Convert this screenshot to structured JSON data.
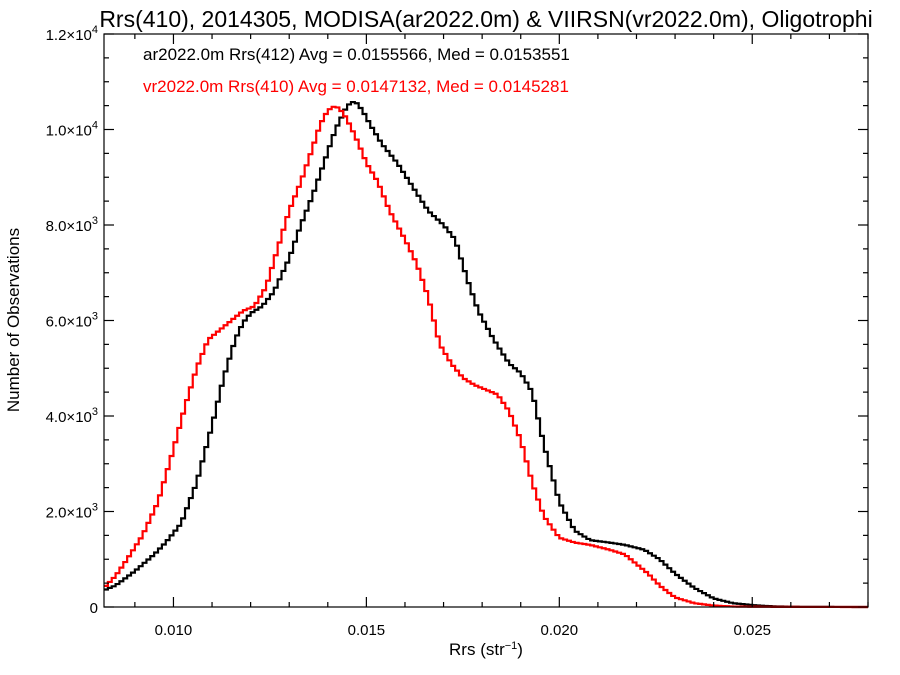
{
  "chart_data": {
    "type": "line",
    "title": "Rrs(410), 2014305, MODISA(ar2022.0m) & VIIRSN(vr2022.0m), Oligotrophi",
    "xlabel_main": "Rrs (str",
    "xlabel_sup": "−1",
    "xlabel_close": ")",
    "ylabel": "Number of Observations",
    "xlim": [
      0.0082,
      0.028
    ],
    "ylim": [
      0,
      12000
    ],
    "xticks": [
      {
        "value": 0.01,
        "label": "0.010"
      },
      {
        "value": 0.015,
        "label": "0.015"
      },
      {
        "value": 0.02,
        "label": "0.020"
      },
      {
        "value": 0.025,
        "label": "0.025"
      }
    ],
    "yticks": [
      {
        "value": 0,
        "mant": "0",
        "exp": ""
      },
      {
        "value": 2000,
        "mant": "2.0×10",
        "exp": "3"
      },
      {
        "value": 4000,
        "mant": "4.0×10",
        "exp": "3"
      },
      {
        "value": 6000,
        "mant": "6.0×10",
        "exp": "3"
      },
      {
        "value": 8000,
        "mant": "8.0×10",
        "exp": "3"
      },
      {
        "value": 10000,
        "mant": "1.0×10",
        "exp": "4"
      },
      {
        "value": 12000,
        "mant": "1.2×10",
        "exp": "4"
      }
    ],
    "grid": false,
    "legend_position": "top-left",
    "series": [
      {
        "name": "ar2022.0m Rrs(412) Avg = 0.0155566, Med = 0.0153551",
        "color": "#000000",
        "x": [
          0.0082,
          0.0085,
          0.009,
          0.0095,
          0.0098,
          0.0102,
          0.0106,
          0.011,
          0.0113,
          0.0116,
          0.0118,
          0.012,
          0.0123,
          0.0126,
          0.013,
          0.0133,
          0.0136,
          0.0139,
          0.0142,
          0.0145,
          0.0147,
          0.0149,
          0.0151,
          0.0154,
          0.0158,
          0.0162,
          0.0166,
          0.017,
          0.0173,
          0.0176,
          0.0179,
          0.0183,
          0.0187,
          0.019,
          0.0193,
          0.0196,
          0.02,
          0.0204,
          0.0208,
          0.0213,
          0.0217,
          0.0222,
          0.0226,
          0.023,
          0.0235,
          0.024,
          0.0245,
          0.025,
          0.0255,
          0.026,
          0.027,
          0.028
        ],
        "y": [
          350,
          450,
          750,
          1100,
          1350,
          1750,
          2600,
          3800,
          4800,
          5600,
          5950,
          6150,
          6300,
          6600,
          7300,
          8000,
          8600,
          9300,
          10000,
          10500,
          10600,
          10400,
          10100,
          9700,
          9300,
          8800,
          8300,
          8000,
          7700,
          6900,
          6200,
          5600,
          5100,
          4900,
          4500,
          3400,
          2200,
          1600,
          1400,
          1350,
          1300,
          1200,
          1000,
          700,
          400,
          180,
          80,
          40,
          15,
          5,
          2,
          0
        ]
      },
      {
        "name": "vr2022.0m Rrs(410) Avg = 0.0147132, Med = 0.0145281",
        "color": "#ff0000",
        "x": [
          0.0082,
          0.0085,
          0.0088,
          0.0092,
          0.0096,
          0.01,
          0.0103,
          0.0106,
          0.0109,
          0.0112,
          0.0115,
          0.0118,
          0.0121,
          0.0124,
          0.0127,
          0.013,
          0.0133,
          0.0136,
          0.0138,
          0.014,
          0.0142,
          0.0144,
          0.0146,
          0.0148,
          0.015,
          0.0153,
          0.0156,
          0.016,
          0.0163,
          0.0166,
          0.0169,
          0.0172,
          0.0175,
          0.0178,
          0.0181,
          0.0184,
          0.0187,
          0.019,
          0.0193,
          0.0196,
          0.02,
          0.0204,
          0.0208,
          0.0213,
          0.0217,
          0.022,
          0.0223,
          0.0226,
          0.023,
          0.0235,
          0.024,
          0.0245,
          0.025,
          0.026,
          0.028
        ],
        "y": [
          400,
          650,
          1000,
          1500,
          2200,
          3300,
          4200,
          5000,
          5600,
          5800,
          6000,
          6200,
          6300,
          6700,
          7500,
          8300,
          8900,
          9600,
          10100,
          10400,
          10500,
          10350,
          10050,
          9700,
          9300,
          8900,
          8300,
          7700,
          7200,
          6500,
          5500,
          5100,
          4800,
          4650,
          4550,
          4450,
          4100,
          3500,
          2600,
          1900,
          1450,
          1350,
          1300,
          1200,
          1100,
          900,
          700,
          450,
          200,
          80,
          30,
          10,
          5,
          2,
          0
        ]
      }
    ]
  }
}
